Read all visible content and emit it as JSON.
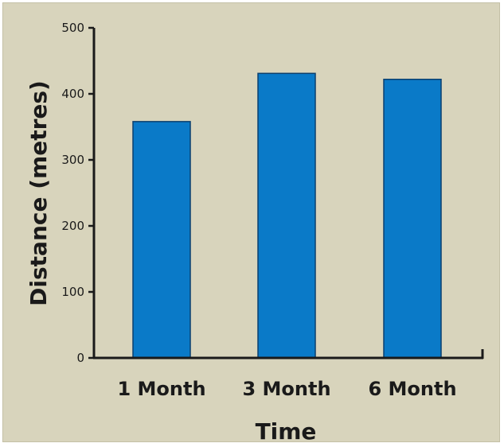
{
  "chart_data": {
    "type": "bar",
    "categories": [
      "1 Month",
      "3 Month",
      "6 Month"
    ],
    "values": [
      358,
      431,
      422
    ],
    "xlabel": "Time",
    "ylabel": "Distance (metres)",
    "ylim": [
      0,
      500
    ],
    "yticks": [
      0,
      100,
      200,
      300,
      400,
      500
    ],
    "grid": false,
    "legend": "none",
    "colors": {
      "background": "#d8d4bc",
      "bar": "#0a7ac8",
      "bar_edge": "#0a3f6e",
      "axis": "#1a1a1a"
    }
  }
}
